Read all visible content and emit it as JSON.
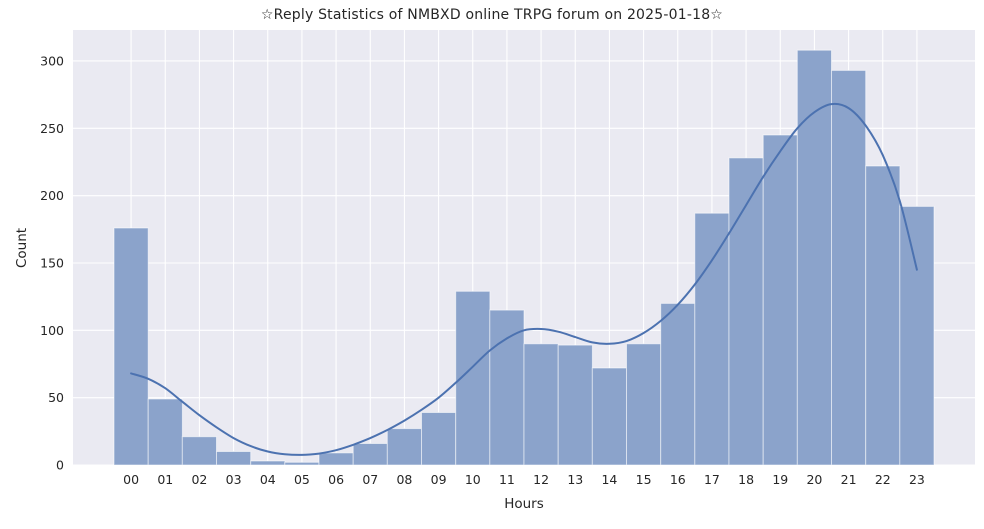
{
  "chart_data": {
    "type": "bar",
    "subtype": "histogram-with-kde",
    "title": "☆Reply Statistics of NMBXD online TRPG forum on 2025-01-18☆",
    "xlabel": "Hours",
    "ylabel": "Count",
    "categories": [
      "00",
      "01",
      "02",
      "03",
      "04",
      "05",
      "06",
      "07",
      "08",
      "09",
      "10",
      "11",
      "12",
      "13",
      "14",
      "15",
      "16",
      "17",
      "18",
      "19",
      "20",
      "21",
      "22",
      "23"
    ],
    "values": [
      176,
      49,
      21,
      10,
      3,
      2,
      9,
      16,
      27,
      39,
      129,
      115,
      90,
      89,
      72,
      90,
      120,
      187,
      228,
      245,
      308,
      293,
      222,
      192
    ],
    "yticks": [
      0,
      50,
      100,
      150,
      200,
      250,
      300
    ],
    "ylim": [
      0,
      323
    ],
    "xlim": [
      -1.7,
      24.7
    ],
    "grid": "on",
    "legend": "none",
    "kde": {
      "x_start": 0,
      "x_step": 0.5,
      "values": [
        68,
        64,
        57,
        47,
        37,
        28,
        20,
        14,
        10,
        8,
        7.5,
        8.5,
        11,
        15,
        20,
        26,
        33,
        41,
        50,
        61,
        73,
        85,
        94,
        100,
        101,
        99,
        95,
        91,
        90,
        92,
        98,
        107,
        119,
        134,
        152,
        172,
        193,
        214,
        233,
        250,
        262,
        268,
        265,
        252,
        230,
        196,
        145
      ]
    },
    "colors": {
      "bar_fill": "#8ba3cb",
      "bar_edge": "rgba(255,255,255,0.55)",
      "kde_line": "#4c72b0",
      "plot_bg": "#eaeaf2",
      "grid": "#ffffff",
      "text": "#262626"
    }
  }
}
